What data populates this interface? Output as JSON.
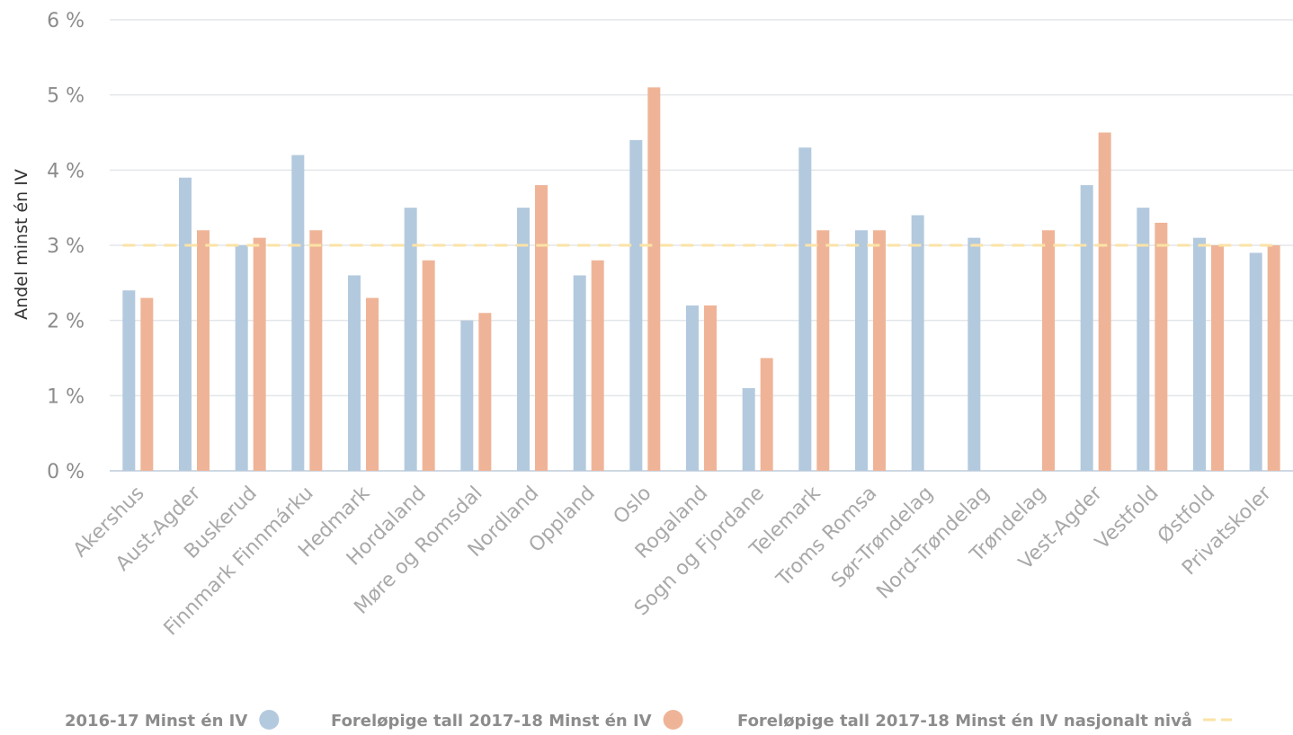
{
  "chart_data": {
    "type": "bar",
    "ylabel": "Andel minst én IV",
    "ylim": [
      0,
      6
    ],
    "yticks": [
      0,
      1,
      2,
      3,
      4,
      5,
      6
    ],
    "ytick_labels": [
      "0 %",
      "1 %",
      "2 %",
      "3 %",
      "4 %",
      "5 %",
      "6 %"
    ],
    "grid": true,
    "legend_position": "bottom",
    "categories": [
      "Akershus",
      "Aust-Agder",
      "Buskerud",
      "Finnmark Finnmárku",
      "Hedmark",
      "Hordaland",
      "Møre og Romsdal",
      "Nordland",
      "Oppland",
      "Oslo",
      "Rogaland",
      "Sogn og Fjordane",
      "Telemark",
      "Troms Romsa",
      "Sør-Trøndelag",
      "Nord-Trøndelag",
      "Trøndelag",
      "Vest-Agder",
      "Vestfold",
      "Østfold",
      "Privatskoler"
    ],
    "series": [
      {
        "name": "2016-17 Minst én IV",
        "color": "#b3c9de",
        "values": [
          2.4,
          3.9,
          3.0,
          4.2,
          2.6,
          3.5,
          2.0,
          3.5,
          2.6,
          4.4,
          2.2,
          1.1,
          4.3,
          3.2,
          3.4,
          3.1,
          null,
          3.8,
          3.5,
          3.1,
          2.9
        ]
      },
      {
        "name": "Foreløpige tall 2017-18 Minst én IV",
        "color": "#efb497",
        "values": [
          2.3,
          3.2,
          3.1,
          3.2,
          2.3,
          2.8,
          2.1,
          3.8,
          2.8,
          5.1,
          2.2,
          1.5,
          3.2,
          3.2,
          null,
          null,
          3.2,
          4.5,
          3.3,
          3.0,
          3.0
        ]
      }
    ],
    "reference_line": {
      "name": "Foreløpige tall 2017-18 Minst én IV nasjonalt nivå",
      "value": 3.0,
      "color": "#fbe3a6"
    }
  }
}
